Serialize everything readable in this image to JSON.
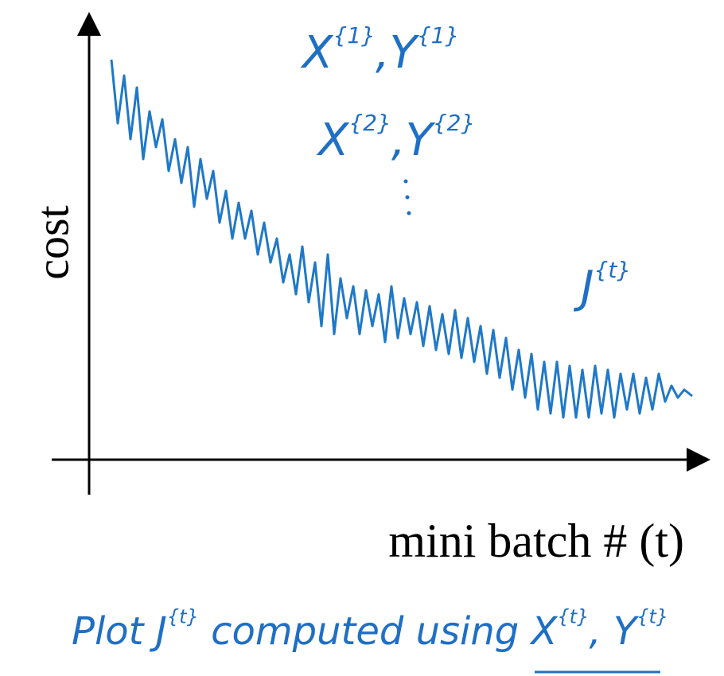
{
  "axes": {
    "y_label": "cost",
    "x_label": "mini batch # (t)"
  },
  "annotations": [
    [
      {
        "text": "X"
      },
      {
        "text": "{1}",
        "sup": true
      },
      {
        "text": ","
      },
      {
        "text": "Y"
      },
      {
        "text": "{1}",
        "sup": true
      }
    ],
    [
      {
        "text": "X"
      },
      {
        "text": "{2}",
        "sup": true
      },
      {
        "text": ","
      },
      {
        "text": "Y"
      },
      {
        "text": "{2}",
        "sup": true
      }
    ],
    [
      {
        "text": "J"
      },
      {
        "text": "{t}",
        "sup": true
      }
    ]
  ],
  "caption": [
    {
      "text": "Plot J"
    },
    {
      "text": "{t}",
      "sup": true
    },
    {
      "text": " computed using "
    },
    {
      "text": "X"
    },
    {
      "text": "{t}",
      "sup": true
    },
    {
      "text": ", "
    },
    {
      "text": "Y"
    },
    {
      "text": "{t}",
      "sup": true
    }
  ]
}
